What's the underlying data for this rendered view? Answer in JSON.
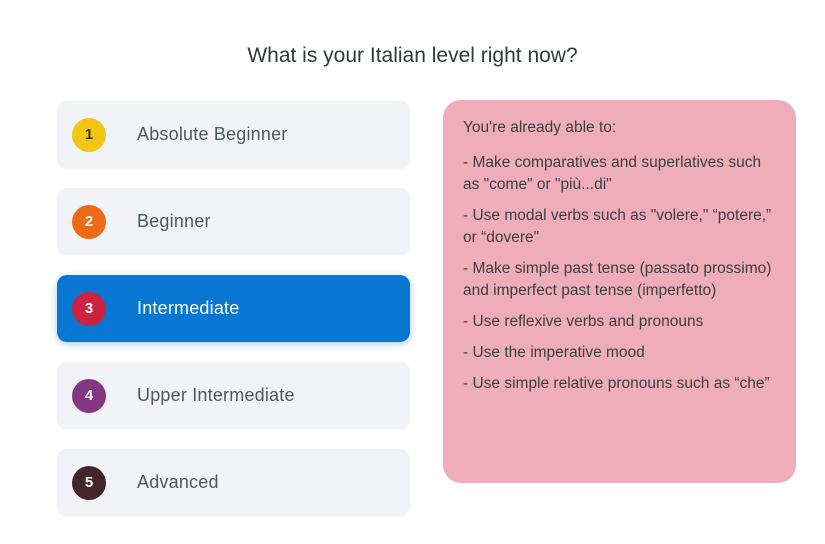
{
  "page": {
    "title": "What is your Italian level right now?",
    "background_color": "#ffffff"
  },
  "levels": {
    "selected_label": "Intermediate",
    "selected_bg_color": "#0777D1",
    "item_bg_color": "#F1F3F7",
    "items": [
      {
        "number": "1",
        "label": "Absolute Beginner",
        "circle_color": "#F3C517",
        "number_color": "#45380E",
        "selected": false
      },
      {
        "number": "2",
        "label": "Beginner",
        "circle_color": "#ED6A16",
        "number_color": "#FFFFFF",
        "selected": false
      },
      {
        "number": "3",
        "label": "Intermediate",
        "circle_color": "#CC2340",
        "number_color": "#FFFFFF",
        "selected": true
      },
      {
        "number": "4",
        "label": "Upper Intermediate",
        "circle_color": "#833780",
        "number_color": "#FFFFFF",
        "selected": false
      },
      {
        "number": "5",
        "label": "Advanced",
        "circle_color": "#44252E",
        "number_color": "#FFFFFF",
        "selected": false
      }
    ]
  },
  "details_panel": {
    "background_color": "#EFADB9",
    "text_color": "#3B4045",
    "heading": "You're already able to:",
    "bullets": [
      "- Make comparatives and superlatives such as \"come\" or \"più...di\"",
      "- Use modal verbs such as \"volere,\" “potere,” or “dovere\"",
      "- Make simple past tense (passato prossimo) and imperfect past tense (imperfetto)",
      "- Use reflexive verbs and pronouns",
      "- Use the imperative mood",
      "- Use simple relative pronouns such as “che”"
    ]
  }
}
